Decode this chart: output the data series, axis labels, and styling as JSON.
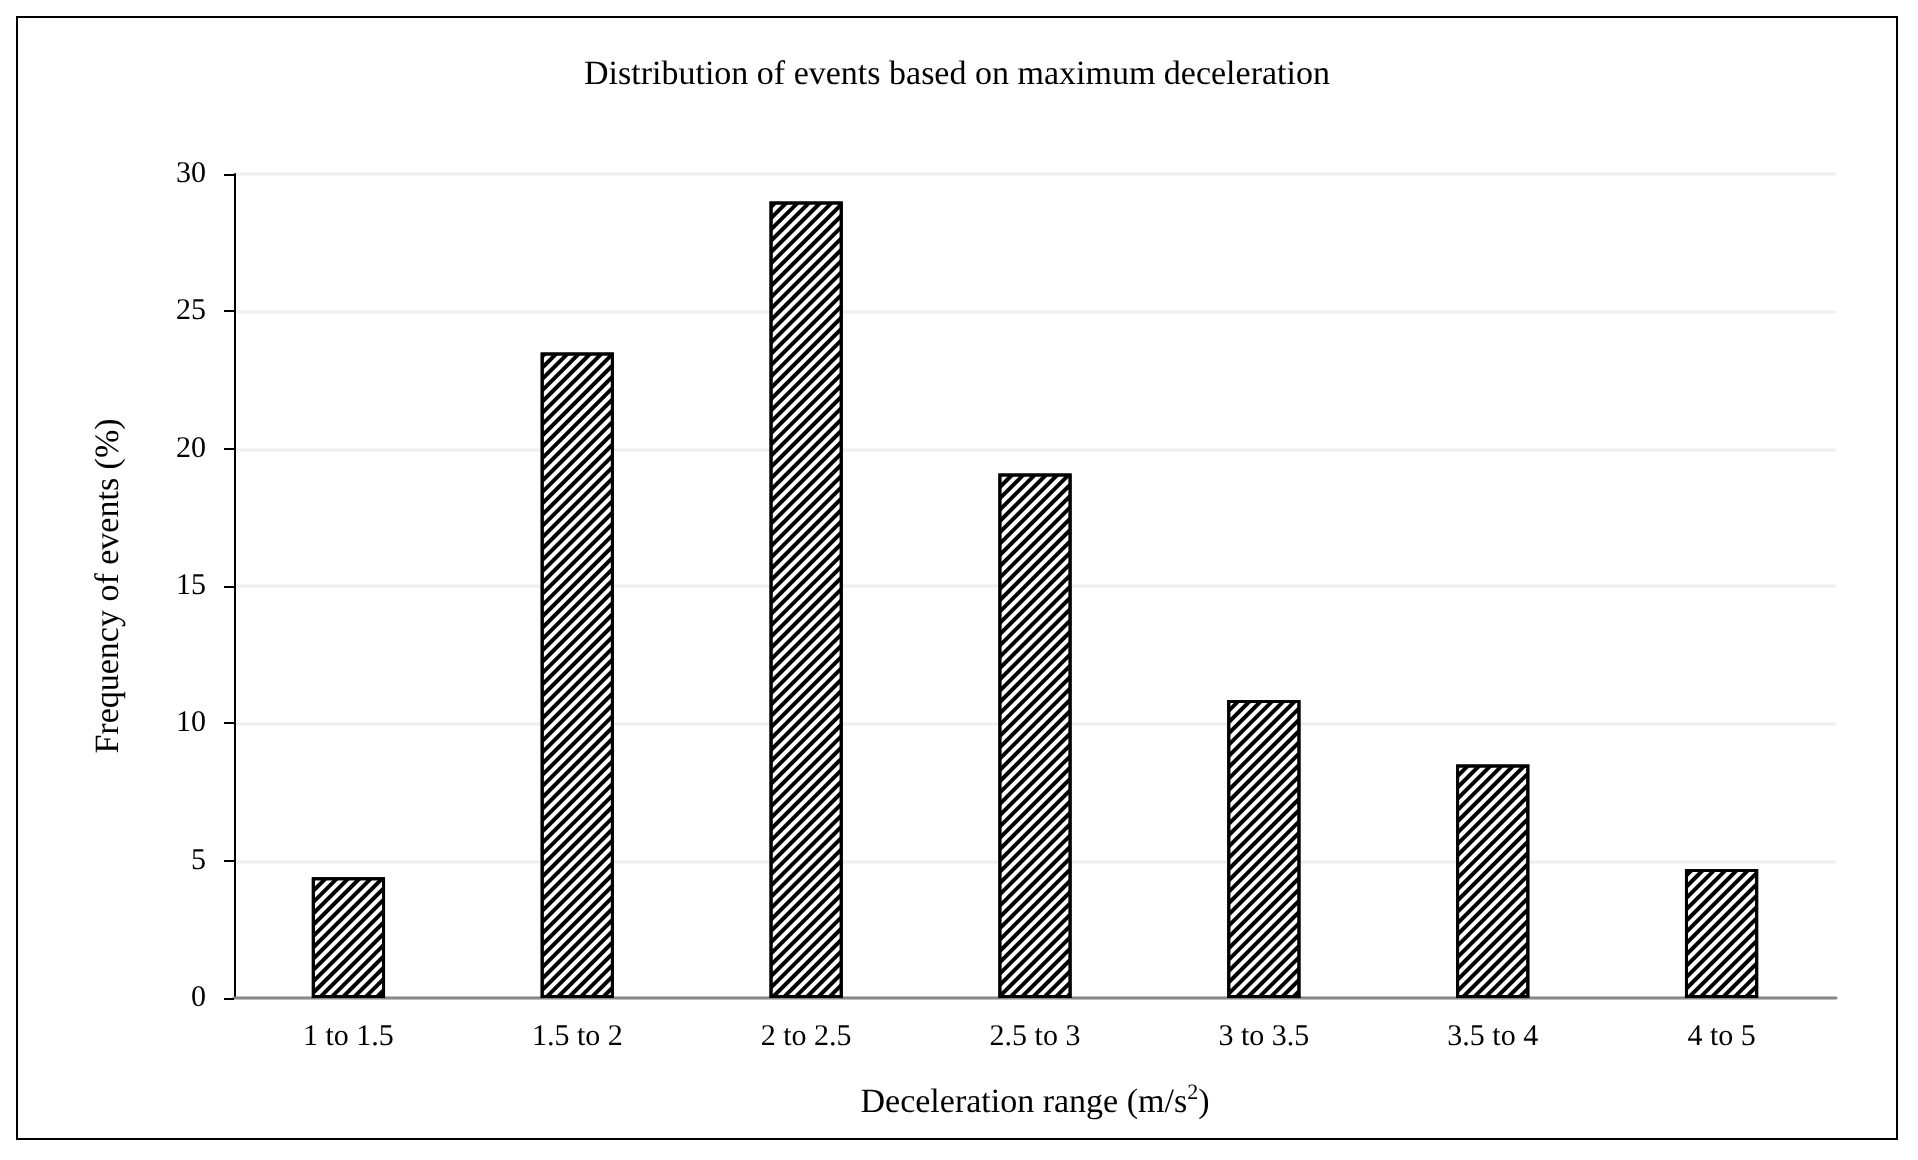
{
  "chart_data": {
    "type": "bar",
    "title": "Distribution of events based on maximum deceleration",
    "xlabel": "Deceleration range (m/s$^{2}$)",
    "ylabel": "Frequency of events (%)",
    "categories": [
      "1 to 1.5",
      "1.5 to 2",
      "2 to 2.5",
      "2.5 to 3",
      "3 to 3.5",
      "3.5 to 4",
      "4 to 5"
    ],
    "values": [
      4.4,
      23.5,
      29.0,
      19.1,
      10.85,
      8.5,
      4.7
    ],
    "color": "#000000",
    "ylim": [
      0,
      30
    ],
    "yticks": [
      0,
      5,
      10,
      15,
      20,
      25,
      30
    ],
    "grid": "y"
  }
}
